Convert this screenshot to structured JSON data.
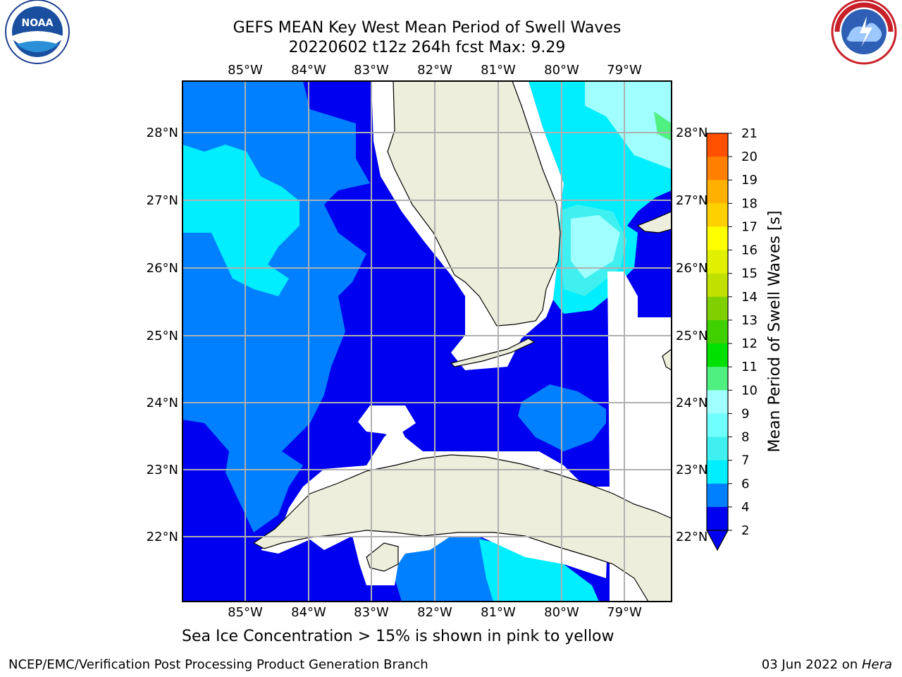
{
  "title": {
    "line1": "GEFS MEAN Key West Mean Period of Swell Waves",
    "line2": "20220602 t12z 264h fcst   Max: 9.29"
  },
  "map": {
    "lon_labels": [
      "85°W",
      "84°W",
      "83°W",
      "82°W",
      "81°W",
      "80°W",
      "79°W"
    ],
    "lat_labels": [
      "28°N",
      "27°N",
      "26°N",
      "25°N",
      "24°N",
      "23°N",
      "22°N"
    ],
    "land_color": "#eeeedd",
    "grid_color": "#b0b0b0"
  },
  "colorbar": {
    "label": "Mean Period of Swell Waves [s]",
    "ticks": [
      "2",
      "4",
      "6",
      "7",
      "8",
      "9",
      "10",
      "11",
      "12",
      "13",
      "14",
      "15",
      "16",
      "17",
      "18",
      "19",
      "20",
      "21"
    ],
    "colors": [
      "#0000f0",
      "#0080ff",
      "#00eeff",
      "#40f0f0",
      "#70ffff",
      "#a0ffff",
      "#50f080",
      "#00e000",
      "#40d000",
      "#80d000",
      "#c0e000",
      "#e0f000",
      "#ffff00",
      "#ffd000",
      "#ffb000",
      "#ff8000",
      "#ff5000",
      "#ff2000"
    ]
  },
  "subtitle": "Sea Ice Concentration > 15% is shown in pink to yellow",
  "footer": {
    "left": "NCEP/EMC/Verification Post Processing Product Generation Branch",
    "right_prefix": "03 Jun 2022 on ",
    "right_host": "Hera"
  },
  "logos": {
    "noaa": "NOAA",
    "nws": "NATIONAL WEATHER SERVICE"
  }
}
